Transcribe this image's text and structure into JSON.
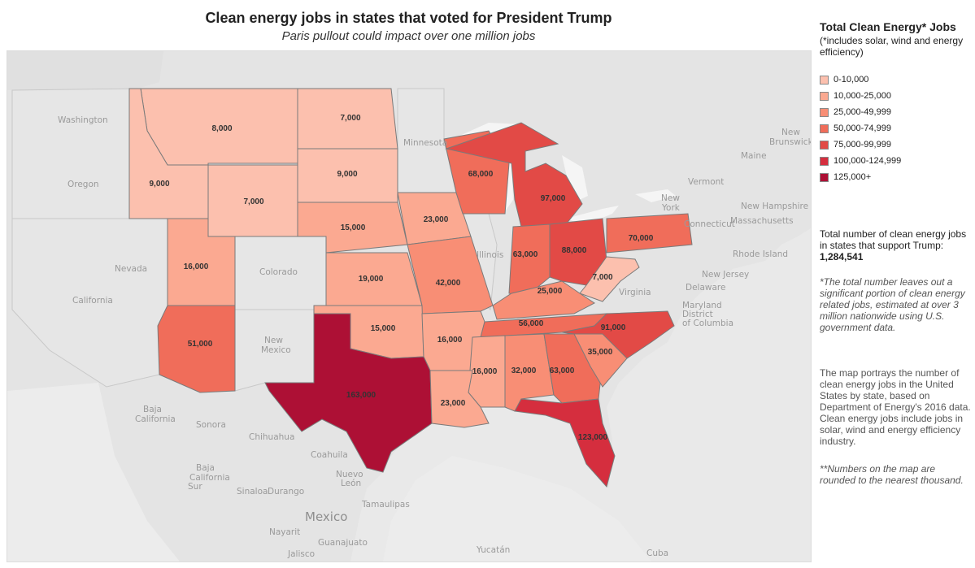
{
  "title": "Clean energy jobs in states that voted for President Trump",
  "subtitle": "Paris pullout could impact over one million jobs",
  "legend": {
    "title": "Total Clean Energy* Jobs",
    "subtitle": "(*includes solar, wind and energy efficiency)",
    "items": [
      {
        "label": "0-10,000",
        "color": "#fcc0ae"
      },
      {
        "label": "10,000-25,000",
        "color": "#fba991"
      },
      {
        "label": "25,000-49,999",
        "color": "#f88e75"
      },
      {
        "label": "50,000-74,999",
        "color": "#f06d5a"
      },
      {
        "label": "75,000-99,999",
        "color": "#e24a46"
      },
      {
        "label": "100,000-124,999",
        "color": "#d52e3e"
      },
      {
        "label": "125,000+",
        "color": "#ad1035"
      }
    ]
  },
  "total": {
    "text": "Total number of clean energy jobs in states that support Trump:",
    "value": "1,284,541"
  },
  "notes": {
    "note1": "*The total number leaves out a significant portion of clean energy related jobs, estimated at over 3 million nationwide using U.S. government data.",
    "description": "The map portrays the number of clean energy jobs in the United States by state, based on Department of Energy's 2016 data. Clean energy jobs include jobs in solar, wind and energy efficiency industry.",
    "note2": "**Numbers on the map are rounded to the nearest thousand."
  },
  "map": {
    "states": [
      {
        "name": "Montana",
        "value": "8,000",
        "color": "#fcc0ae"
      },
      {
        "name": "North Dakota",
        "value": "7,000",
        "color": "#fcc0ae"
      },
      {
        "name": "Idaho",
        "value": "9,000",
        "color": "#fcc0ae"
      },
      {
        "name": "South Dakota",
        "value": "9,000",
        "color": "#fcc0ae"
      },
      {
        "name": "Wyoming",
        "value": "7,000",
        "color": "#fcc0ae"
      },
      {
        "name": "Nebraska",
        "value": "15,000",
        "color": "#fba991"
      },
      {
        "name": "Utah",
        "value": "16,000",
        "color": "#fba991"
      },
      {
        "name": "Kansas",
        "value": "19,000",
        "color": "#fba991"
      },
      {
        "name": "Iowa",
        "value": "23,000",
        "color": "#fba991"
      },
      {
        "name": "Wisconsin",
        "value": "68,000",
        "color": "#f06d5a"
      },
      {
        "name": "Michigan",
        "value": "97,000",
        "color": "#e24a46"
      },
      {
        "name": "Missouri",
        "value": "42,000",
        "color": "#f88e75"
      },
      {
        "name": "Indiana",
        "value": "63,000",
        "color": "#f06d5a"
      },
      {
        "name": "Ohio",
        "value": "88,000",
        "color": "#e24a46"
      },
      {
        "name": "Pennsylvania",
        "value": "70,000",
        "color": "#f06d5a"
      },
      {
        "name": "West Virginia",
        "value": "7,000",
        "color": "#fcc0ae"
      },
      {
        "name": "Kentucky",
        "value": "25,000",
        "color": "#f88e75"
      },
      {
        "name": "Arizona",
        "value": "51,000",
        "color": "#f06d5a"
      },
      {
        "name": "Oklahoma",
        "value": "15,000",
        "color": "#fba991"
      },
      {
        "name": "Arkansas",
        "value": "16,000",
        "color": "#fba991"
      },
      {
        "name": "Tennessee",
        "value": "56,000",
        "color": "#f06d5a"
      },
      {
        "name": "North Carolina",
        "value": "91,000",
        "color": "#e24a46"
      },
      {
        "name": "Mississippi",
        "value": "16,000",
        "color": "#fba991"
      },
      {
        "name": "Alabama",
        "value": "32,000",
        "color": "#f88e75"
      },
      {
        "name": "Georgia",
        "value": "63,000",
        "color": "#f06d5a"
      },
      {
        "name": "South Carolina",
        "value": "35,000",
        "color": "#f88e75"
      },
      {
        "name": "Texas",
        "value": "163,000",
        "color": "#ad1035"
      },
      {
        "name": "Louisiana",
        "value": "23,000",
        "color": "#fba991"
      },
      {
        "name": "Florida",
        "value": "123,000",
        "color": "#d52e3e"
      }
    ],
    "other_states": [
      "Washington",
      "Oregon",
      "California",
      "Nevada",
      "Colorado",
      "New Mexico",
      "Minnesota",
      "Illinois",
      "Virginia",
      "Maine",
      "Vermont",
      "New Hampshire",
      "Massachusetts",
      "Connecticut",
      "Rhode Island",
      "New York",
      "New Jersey",
      "Delaware",
      "Maryland",
      "District of Columbia"
    ],
    "places": [
      {
        "name": "Washington"
      },
      {
        "name": "Oregon"
      },
      {
        "name": "California"
      },
      {
        "name": "Nevada"
      },
      {
        "name": "Colorado"
      },
      {
        "name": "New"
      },
      {
        "name": "Mexico"
      },
      {
        "name": "Minnesota"
      },
      {
        "name": "Illinois"
      },
      {
        "name": "Virginia"
      },
      {
        "name": "New"
      },
      {
        "name": "York"
      },
      {
        "name": "Vermont"
      },
      {
        "name": "Maine"
      },
      {
        "name": "New"
      },
      {
        "name": "Brunswick"
      },
      {
        "name": "New Hampshire"
      },
      {
        "name": "Massachusetts"
      },
      {
        "name": "Connecticut"
      },
      {
        "name": "Rhode Island"
      },
      {
        "name": "New Jersey"
      },
      {
        "name": "Delaware"
      },
      {
        "name": "Maryland"
      },
      {
        "name": "District"
      },
      {
        "name": "of Columbia"
      },
      {
        "name": "Baja"
      },
      {
        "name": "California"
      },
      {
        "name": "Sonora"
      },
      {
        "name": "Chihuahua"
      },
      {
        "name": "Coahuila"
      },
      {
        "name": "Baja"
      },
      {
        "name": "California"
      },
      {
        "name": "Sur"
      },
      {
        "name": "Nuevo"
      },
      {
        "name": "León"
      },
      {
        "name": "Sinaloa"
      },
      {
        "name": "Durango"
      },
      {
        "name": "Tamaulipas"
      },
      {
        "name": "Mexico"
      },
      {
        "name": "Nayarit"
      },
      {
        "name": "Guanajuato"
      },
      {
        "name": "Jalisco"
      },
      {
        "name": "Yucatán"
      },
      {
        "name": "Cuba"
      }
    ]
  }
}
